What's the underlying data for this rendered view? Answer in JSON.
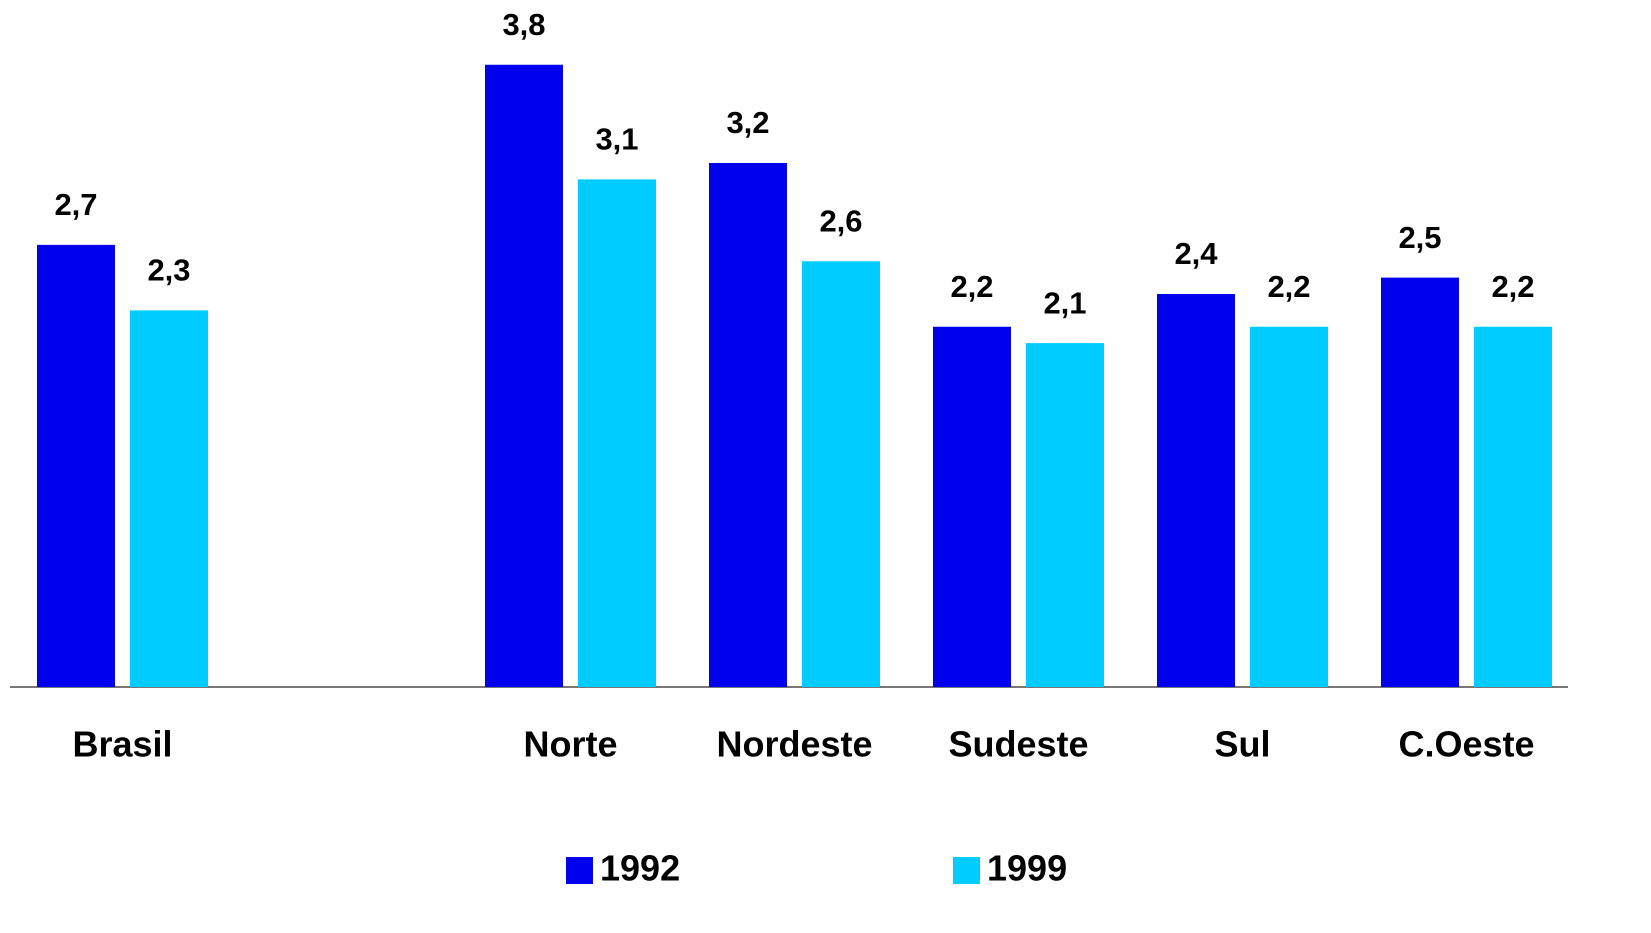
{
  "chart_data": {
    "type": "bar",
    "categories": [
      "Brasil",
      null,
      "Norte",
      "Nordeste",
      "Sudeste",
      "Sul",
      "C.Oeste"
    ],
    "series": [
      {
        "name": "1992",
        "color": "#0000ee",
        "values": [
          2.7,
          null,
          3.8,
          3.2,
          2.2,
          2.4,
          2.5
        ],
        "value_labels": [
          "2,7",
          null,
          "3,8",
          "3,2",
          "2,2",
          "2,4",
          "2,5"
        ]
      },
      {
        "name": "1999",
        "color": "#00ccff",
        "values": [
          2.3,
          null,
          3.1,
          2.6,
          2.1,
          2.2,
          2.2
        ],
        "value_labels": [
          "2,3",
          null,
          "3,1",
          "2,6",
          "2,1",
          "2,2",
          "2,2"
        ]
      }
    ],
    "ylim": [
      0,
      4
    ]
  }
}
